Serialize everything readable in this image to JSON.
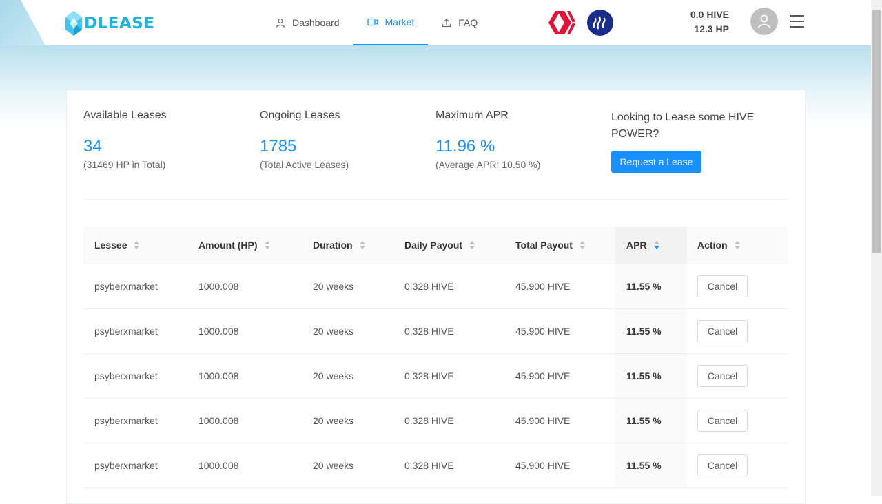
{
  "brand": {
    "name": "DLEASE"
  },
  "nav": [
    {
      "label": "Dashboard",
      "icon": "user-icon",
      "active": false
    },
    {
      "label": "Market",
      "icon": "video-icon",
      "active": true
    },
    {
      "label": "FAQ",
      "icon": "upload-icon",
      "active": false
    }
  ],
  "balance": {
    "hive": "0.0 HIVE",
    "hp": "12.3 HP"
  },
  "stats": {
    "available": {
      "title": "Available Leases",
      "value": "34",
      "sub": "(31469 HP in Total)"
    },
    "ongoing": {
      "title": "Ongoing Leases",
      "value": "1785",
      "sub": "(Total Active Leases)"
    },
    "apr": {
      "title": "Maximum APR",
      "value": "11.96 %",
      "sub": "(Average APR: 10.50 %)"
    },
    "request": {
      "title": "Looking to Lease some HIVE POWER?",
      "button": "Request a Lease"
    }
  },
  "table": {
    "columns": [
      "Lessee",
      "Amount (HP)",
      "Duration",
      "Daily Payout",
      "Total Payout",
      "APR",
      "Action"
    ],
    "sorted_column": "APR",
    "sort_direction": "descending",
    "rows": [
      {
        "lessee": "psyberxmarket",
        "amount": "1000.008",
        "duration": "20 weeks",
        "daily": "0.328 HIVE",
        "total": "45.900 HIVE",
        "apr": "11.55 %",
        "action": "Cancel"
      },
      {
        "lessee": "psyberxmarket",
        "amount": "1000.008",
        "duration": "20 weeks",
        "daily": "0.328 HIVE",
        "total": "45.900 HIVE",
        "apr": "11.55 %",
        "action": "Cancel"
      },
      {
        "lessee": "psyberxmarket",
        "amount": "1000.008",
        "duration": "20 weeks",
        "daily": "0.328 HIVE",
        "total": "45.900 HIVE",
        "apr": "11.55 %",
        "action": "Cancel"
      },
      {
        "lessee": "psyberxmarket",
        "amount": "1000.008",
        "duration": "20 weeks",
        "daily": "0.328 HIVE",
        "total": "45.900 HIVE",
        "apr": "11.55 %",
        "action": "Cancel"
      },
      {
        "lessee": "psyberxmarket",
        "amount": "1000.008",
        "duration": "20 weeks",
        "daily": "0.328 HIVE",
        "total": "45.900 HIVE",
        "apr": "11.55 %",
        "action": "Cancel"
      }
    ]
  },
  "colors": {
    "accent": "#1890ff",
    "logo": "#1fb3e0",
    "hive": "#e31337",
    "steem": "#1a2d8c"
  }
}
